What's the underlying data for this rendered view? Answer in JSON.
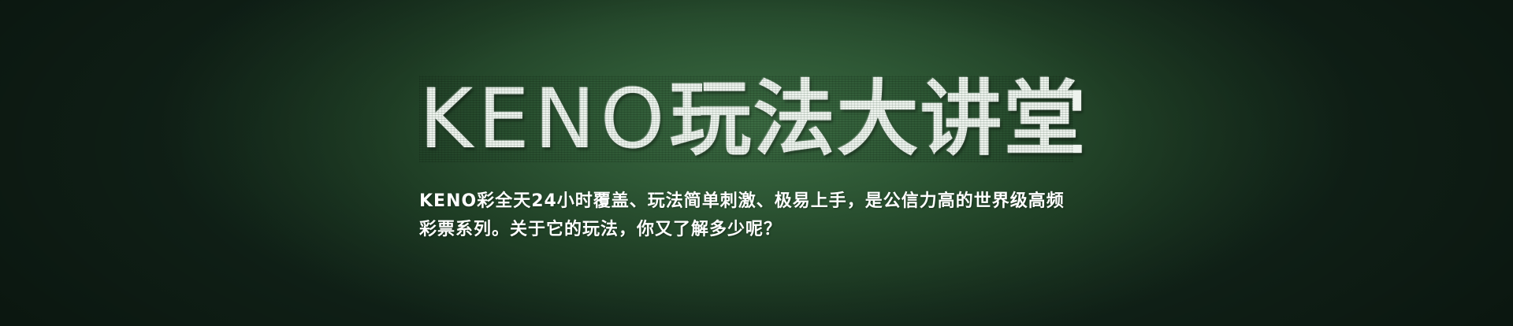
{
  "banner": {
    "title_latin": "KENO",
    "title_cjk": "玩法大讲堂",
    "description_line1": "KENO彩全天24小时覆盖、玩法简单刺激、极易上手，是公信力高的世界级高频",
    "description_line2": "彩票系列。关于它的玩法，你又了解多少呢？"
  },
  "colors": {
    "background_center": "#3b6a42",
    "background_edge": "#12251a",
    "text": "#ffffff"
  }
}
